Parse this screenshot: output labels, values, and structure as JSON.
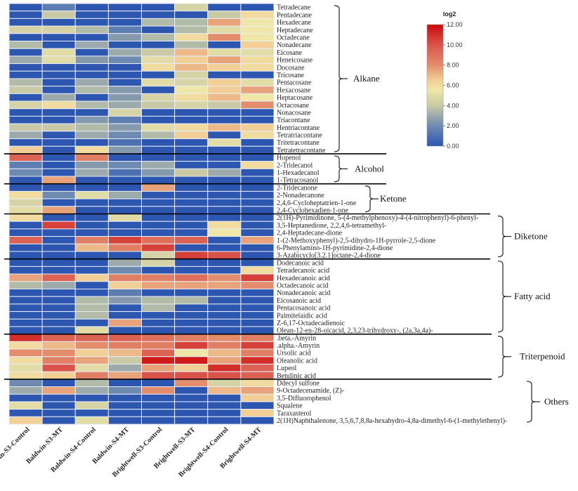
{
  "chart_data": {
    "type": "heatmap",
    "title": "",
    "columns": [
      "Baldwin-S3-Control",
      "Baldwin-S3-MT",
      "Baldwin-S4-Control",
      "Baldwin-S4-MT",
      "Brightwell-S3-Control",
      "Brightwell-S3-MT",
      "Brightwell-S4-Control",
      "Brightwell-S4-MT"
    ],
    "colorbar": {
      "title": "log2",
      "range": [
        0,
        12
      ],
      "ticks": [
        "0.00",
        "2.00",
        "4.00",
        "6.00",
        "8.00",
        "10.00",
        "12.00"
      ],
      "colors": [
        "#2c56b0",
        "#7f96ae",
        "#c9caa5",
        "#efe7a8",
        "#f2cf96",
        "#e48d6c",
        "#d9534a",
        "#cc0a0a"
      ]
    },
    "groups": [
      {
        "name": "Alkane",
        "rows": [
          {
            "label": "Tetradecane",
            "values": [
              0,
              1.5,
              0,
              0,
              0,
              4.5,
              0,
              0
            ]
          },
          {
            "label": "Pentadecane",
            "values": [
              0,
              4,
              0,
              0,
              0,
              0,
              4,
              6
            ]
          },
          {
            "label": "Hexadecane",
            "values": [
              0,
              0,
              0,
              0,
              3.5,
              3.5,
              7.5,
              5.5
            ]
          },
          {
            "label": "Heptadecane",
            "values": [
              4.5,
              4.5,
              3.5,
              1.5,
              0,
              3.5,
              5,
              5.5
            ]
          },
          {
            "label": "Octadecane",
            "values": [
              0,
              0,
              0,
              2.5,
              3.5,
              6,
              8,
              5.5
            ]
          },
          {
            "label": "Nonadecane",
            "values": [
              3.5,
              0,
              3,
              0,
              0,
              3.5,
              0,
              6.5
            ]
          },
          {
            "label": "Eicosane",
            "values": [
              0,
              5,
              0,
              3,
              4,
              7,
              5,
              5
            ]
          },
          {
            "label": "Heneicosane",
            "values": [
              3,
              5,
              2.5,
              2,
              5,
              6.5,
              7.5,
              6
            ]
          },
          {
            "label": "Docosane",
            "values": [
              0,
              0,
              0,
              0,
              6,
              7,
              6.5,
              6
            ]
          },
          {
            "label": "Tricosane",
            "values": [
              0,
              0,
              0,
              0,
              0,
              4.5,
              0,
              0
            ]
          },
          {
            "label": "Pentacosane",
            "values": [
              3.5,
              0,
              3,
              0,
              5,
              4.5,
              6.5,
              5
            ]
          },
          {
            "label": "Hexacosane",
            "values": [
              4,
              0,
              3.5,
              2.5,
              0,
              5.5,
              6.5,
              7.5
            ]
          },
          {
            "label": "Heptacosane",
            "values": [
              0,
              3,
              0,
              2.5,
              4.5,
              6,
              7,
              5.5
            ]
          },
          {
            "label": "Octacosane",
            "values": [
              4.5,
              6,
              3.5,
              3,
              4,
              4.5,
              4,
              8
            ]
          },
          {
            "label": "Nonacosane",
            "values": [
              0,
              0,
              0,
              4.5,
              0,
              0,
              0,
              0
            ]
          },
          {
            "label": "Triacontane",
            "values": [
              0,
              0,
              2.5,
              1.5,
              0,
              0,
              0,
              0
            ]
          },
          {
            "label": "Hentriacontane",
            "values": [
              4,
              4,
              3.5,
              2.5,
              5,
              6,
              7,
              6.5
            ]
          },
          {
            "label": "Tetratriacontane",
            "values": [
              3,
              0,
              3,
              2,
              3.5,
              6.5,
              0,
              6
            ]
          },
          {
            "label": "Tritetracontane",
            "values": [
              0,
              0,
              0,
              1,
              0,
              0,
              5,
              0
            ]
          },
          {
            "label": "Tetratetracontane",
            "values": [
              6.5,
              0,
              6,
              2.5,
              0,
              0,
              0,
              0
            ]
          }
        ]
      },
      {
        "name": "Alcohol",
        "rows": [
          {
            "label": "Hopenol",
            "values": [
              9.5,
              0,
              8.5,
              0,
              0,
              0,
              0,
              0
            ]
          },
          {
            "label": "2-Tridecanol",
            "values": [
              1.5,
              0,
              2.5,
              2,
              3,
              0,
              0,
              6
            ]
          },
          {
            "label": "1-Hexadecanol",
            "values": [
              2,
              0,
              3,
              1,
              2.5,
              4,
              3,
              0
            ]
          },
          {
            "label": "1-Tetracosanol",
            "values": [
              0,
              7.5,
              0,
              0,
              0,
              0,
              0,
              0
            ]
          }
        ]
      },
      {
        "name": "Ketone",
        "rows": [
          {
            "label": "2-Tridecanone",
            "values": [
              0,
              0,
              0,
              0,
              7.5,
              0,
              0,
              0
            ]
          },
          {
            "label": "2-Nonadecanone",
            "values": [
              6,
              2,
              5,
              3,
              0,
              0,
              0,
              0
            ]
          },
          {
            "label": "2,4,6-Cycloheptatrien-1-one",
            "values": [
              4.5,
              0,
              0,
              0,
              0,
              0,
              0,
              0
            ]
          },
          {
            "label": "2,4-Cyclohexadien-1-one",
            "values": [
              5,
              7.5,
              0,
              0,
              0,
              0,
              0,
              0
            ]
          }
        ]
      },
      {
        "name": "Diketone",
        "rows": [
          {
            "label": "2(1H)-Pyrimidinone, 5-(4-methylphenoxy)-4-(4-nitrophenyl)-6-phenyl-",
            "values": [
              6,
              0,
              0,
              5,
              0,
              0,
              0,
              0
            ]
          },
          {
            "label": "3,5-Heptanedione, 2,2,4,6-tetramethyl-",
            "values": [
              0,
              10.5,
              0,
              0,
              0,
              0,
              6,
              0
            ]
          },
          {
            "label": "2,4-Heptadecane-dione",
            "values": [
              0,
              0,
              0,
              0,
              0,
              0,
              5.5,
              0
            ]
          },
          {
            "label": "1-(2-Methoxyphenyl)-2,5-dihydro-1H-pyrrole-2,5-dione",
            "values": [
              9.5,
              0,
              8.5,
              10.5,
              9,
              9.5,
              0,
              7.5
            ]
          },
          {
            "label": "6-Phenylamino-1H-pyrimidine-2,4-dione",
            "values": [
              0,
              0,
              7,
              8.5,
              10.5,
              0,
              0,
              0
            ]
          },
          {
            "label": "3-Azabicyclo[3.2.1]octane-2,4-dione",
            "values": [
              0,
              0,
              0,
              0,
              4.5,
              10.5,
              10,
              0
            ]
          }
        ]
      },
      {
        "name": "Fatty acid",
        "rows": [
          {
            "label": "Dodecanoic acid",
            "values": [
              0,
              0,
              0,
              3,
              4.5,
              0,
              0,
              0
            ]
          },
          {
            "label": "Tetradecanoic acid",
            "values": [
              0,
              0,
              0,
              2,
              0,
              0,
              0,
              6
            ]
          },
          {
            "label": "Hexadecanoic acid",
            "values": [
              7.5,
              9.5,
              6.5,
              8.5,
              8.5,
              9,
              8,
              10.5
            ]
          },
          {
            "label": "Octadecanoic acid",
            "values": [
              3.5,
              3,
              0,
              6.5,
              7.5,
              7.5,
              7.5,
              8
            ]
          },
          {
            "label": "Nonadecanoic acid",
            "values": [
              0,
              0,
              0,
              1.5,
              0,
              0,
              0,
              0
            ]
          },
          {
            "label": "Eicosanoic acid",
            "values": [
              0,
              0,
              3.5,
              2.5,
              3.5,
              3.5,
              0,
              0
            ]
          },
          {
            "label": "Pentacosanoic acid",
            "values": [
              0,
              0,
              3.5,
              0,
              3.5,
              0,
              0,
              0
            ]
          },
          {
            "label": "Palmitelaidic acid",
            "values": [
              0,
              0,
              3.5,
              0,
              0,
              0,
              0,
              0
            ]
          },
          {
            "label": "Z-6,17-Octadecadienoic",
            "values": [
              0,
              0,
              0,
              7.5,
              0,
              0,
              0,
              0
            ]
          },
          {
            "label": "Olean-12-en-28-oicacid, 2,3,23-trihydroxy-, (2a,3a,4a)-",
            "values": [
              0,
              0,
              5,
              0,
              0,
              0,
              0,
              0
            ]
          }
        ]
      },
      {
        "name": "Triterpenoid",
        "rows": [
          {
            "label": ".beta.-Amyrin",
            "values": [
              11,
              9.5,
              9.5,
              9.5,
              9,
              8.5,
              8,
              8.5
            ]
          },
          {
            "label": ".alpha.-Amyrin",
            "values": [
              6,
              7,
              8,
              8.5,
              8.5,
              10.5,
              8.5,
              10.5
            ]
          },
          {
            "label": "Ursolic acid",
            "values": [
              8,
              8,
              6.5,
              7,
              9.5,
              5.5,
              7,
              8.5
            ]
          },
          {
            "label": "Oleanolic acid",
            "values": [
              6,
              8.5,
              7.5,
              4,
              11.5,
              11.5,
              7.5,
              11
            ]
          },
          {
            "label": "Lupeol",
            "values": [
              5,
              10,
              5,
              3,
              7.5,
              6.5,
              11,
              9.5
            ]
          },
          {
            "label": "Betulinic acid",
            "values": [
              6,
              6.5,
              8.5,
              7.5,
              10,
              10,
              10,
              9.5
            ]
          }
        ]
      },
      {
        "name": "Others",
        "rows": [
          {
            "label": "Ddecyl sulfone",
            "values": [
              2,
              0,
              3.5,
              0,
              0,
              8,
              4.5,
              6
            ]
          },
          {
            "label": "9-Octadecenamide, (Z)-",
            "values": [
              3,
              7.5,
              3,
              2,
              8,
              0,
              7,
              7.5
            ]
          },
          {
            "label": "3,5-Difluorophenol",
            "values": [
              0,
              0,
              0,
              0,
              0,
              0,
              0,
              6.5
            ]
          },
          {
            "label": "Squalene",
            "values": [
              5,
              0,
              4.5,
              0,
              0,
              0,
              0,
              0
            ]
          },
          {
            "label": "Taraxasterol",
            "values": [
              0,
              0,
              0,
              0,
              0,
              0,
              0,
              6.5
            ]
          },
          {
            "label": "2(1H)Naphthalenone, 3,5,6,7,8,8a-hexahydro-4,8a-dimethyl-6-(1-methylethenyl)-",
            "values": [
              6.5,
              0,
              5,
              0,
              0,
              0,
              0,
              0
            ]
          }
        ]
      }
    ]
  }
}
